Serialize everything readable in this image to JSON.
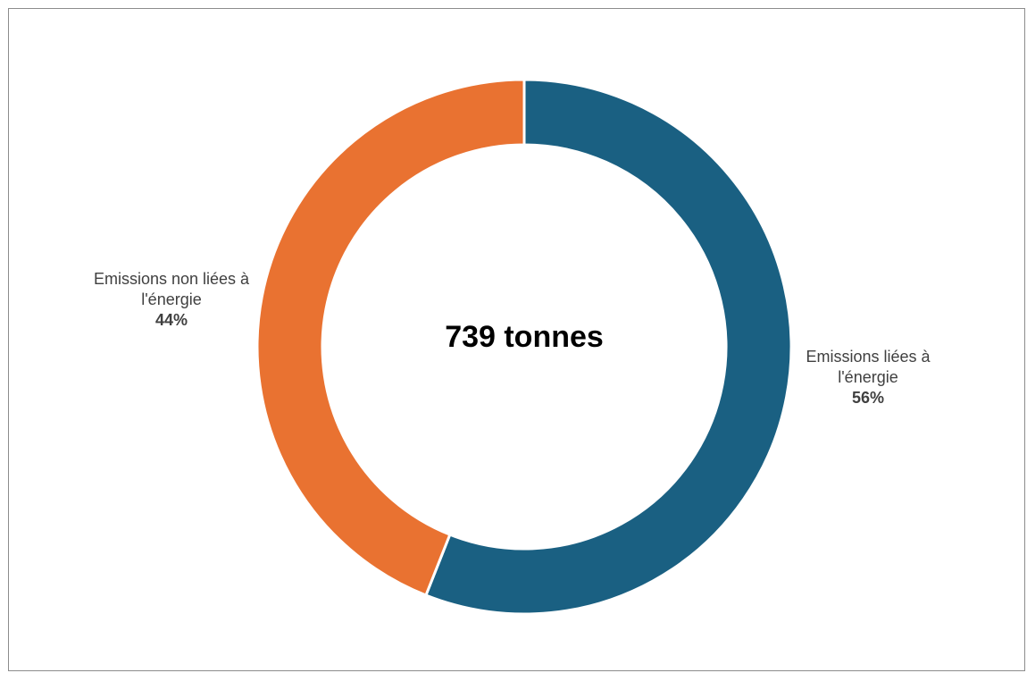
{
  "chart_data": {
    "type": "pie",
    "variant": "donut",
    "center_label": "739 tonnes",
    "slices": [
      {
        "label_lines": [
          "Emissions liées à",
          "l'énergie"
        ],
        "percent_label": "56%",
        "value": 56,
        "color": "#1a6082"
      },
      {
        "label_lines": [
          "Emissions non liées à",
          "l'énergie"
        ],
        "percent_label": "44%",
        "value": 44,
        "color": "#e97231"
      }
    ],
    "start_angle": "12 o'clock",
    "direction": "clockwise",
    "legend": "none"
  }
}
